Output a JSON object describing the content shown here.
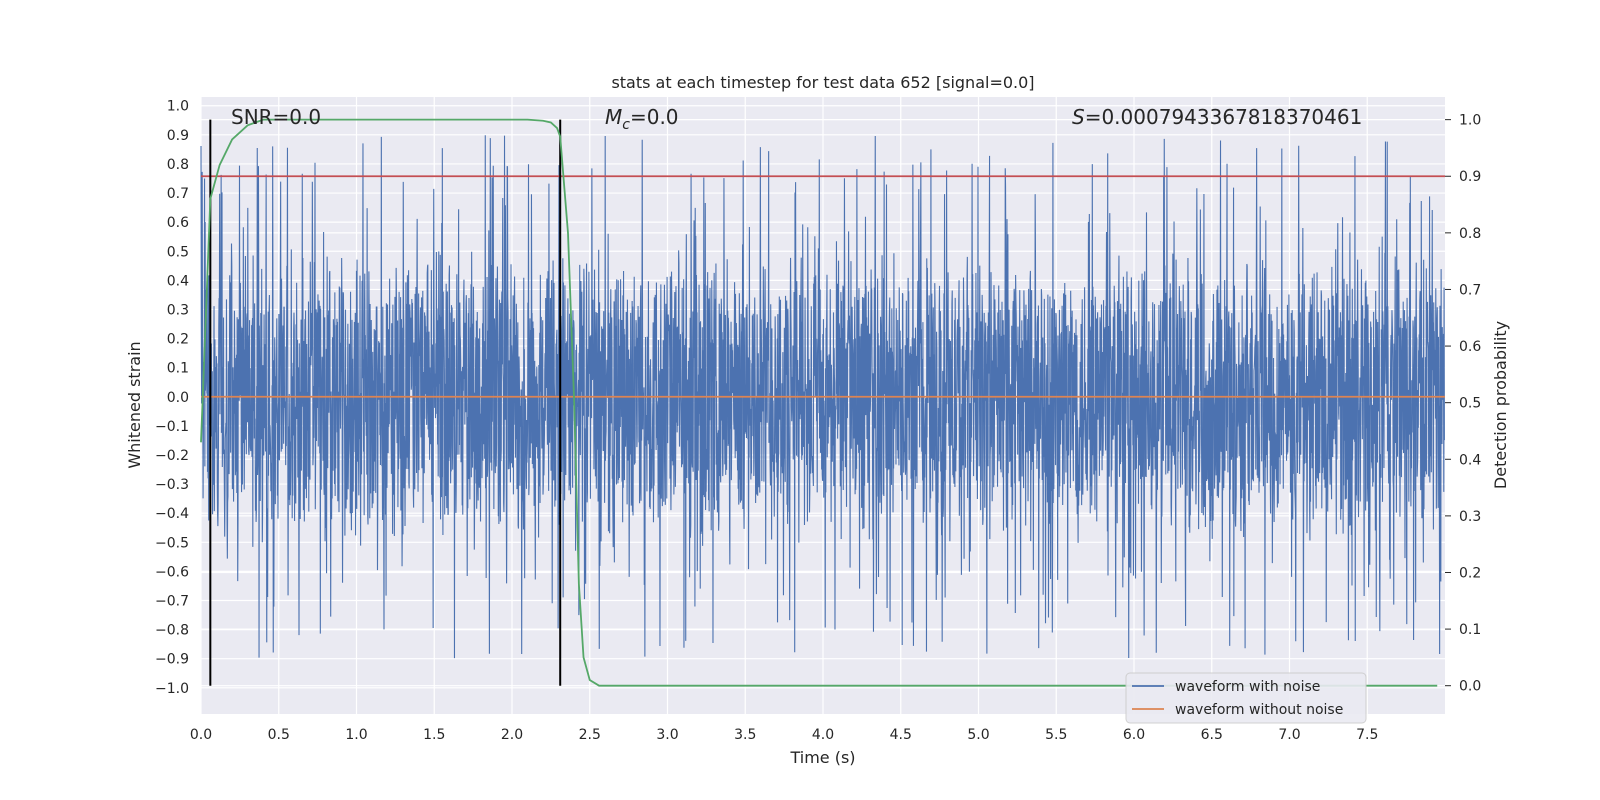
{
  "chart_data": {
    "type": "line",
    "title": "stats at each timestep for test data 652 [signal=0.0]",
    "xlabel": "Time (s)",
    "ylabel": "Whitened strain",
    "y2label": "Detection probability",
    "xlim": [
      0.0,
      8.0
    ],
    "ylim": [
      -1.09,
      1.03
    ],
    "y2lim": [
      -0.05,
      1.04
    ],
    "xticks": [
      "0.0",
      "0.5",
      "1.0",
      "1.5",
      "2.0",
      "2.5",
      "3.0",
      "3.5",
      "4.0",
      "4.5",
      "5.0",
      "5.5",
      "6.0",
      "6.5",
      "7.0",
      "7.5"
    ],
    "yticks": [
      "1.0",
      "0.9",
      "0.8",
      "0.7",
      "0.6",
      "0.5",
      "0.4",
      "0.3",
      "0.2",
      "0.1",
      "0.0",
      "-0.1",
      "-0.2",
      "-0.3",
      "-0.4",
      "-0.5",
      "-0.6",
      "-0.7",
      "-0.8",
      "-0.9",
      "-1.0"
    ],
    "y2ticks": [
      "1.0",
      "0.9",
      "0.8",
      "0.7",
      "0.6",
      "0.5",
      "0.4",
      "0.3",
      "0.2",
      "0.1",
      "0.0"
    ],
    "annotations": {
      "snr": "SNR=0.0",
      "mc_symbol": "M",
      "mc_sub": "c",
      "mc_value": "=0.0",
      "s_symbol": "S",
      "s_value": "=0.0007943367818370461"
    },
    "vlines_x": [
      0.06,
      2.31
    ],
    "threshold_probability": 0.9,
    "series": [
      {
        "name": "waveform with noise",
        "color": "#4c72b0",
        "envelope_upper": 0.45,
        "envelope_lower": -0.45,
        "peak_max": 0.93,
        "peak_min": -1.0
      },
      {
        "name": "waveform without noise",
        "color": "#dd8452",
        "constant": 0.0
      },
      {
        "name": "Detection probability",
        "color": "#55a868",
        "axis": "right",
        "x": [
          0.0,
          0.06,
          0.12,
          0.2,
          0.3,
          0.4,
          0.6,
          1.0,
          1.5,
          2.0,
          2.1,
          2.2,
          2.25,
          2.29,
          2.31,
          2.36,
          2.4,
          2.43,
          2.46,
          2.5,
          2.56,
          2.65,
          3.0,
          5.0,
          7.0,
          7.95
        ],
        "y": [
          0.43,
          0.86,
          0.92,
          0.965,
          0.99,
          1.0,
          1.0,
          1.0,
          1.0,
          1.0,
          1.0,
          0.998,
          0.995,
          0.985,
          0.97,
          0.8,
          0.5,
          0.18,
          0.05,
          0.01,
          0.0,
          0.0,
          0.0,
          0.0,
          0.0,
          0.0
        ]
      },
      {
        "name": "threshold",
        "color": "#c44e52",
        "axis": "right",
        "constant": 0.9
      }
    ],
    "legend": {
      "position": "lower-right",
      "entries": [
        "waveform with noise",
        "waveform without noise"
      ]
    }
  }
}
